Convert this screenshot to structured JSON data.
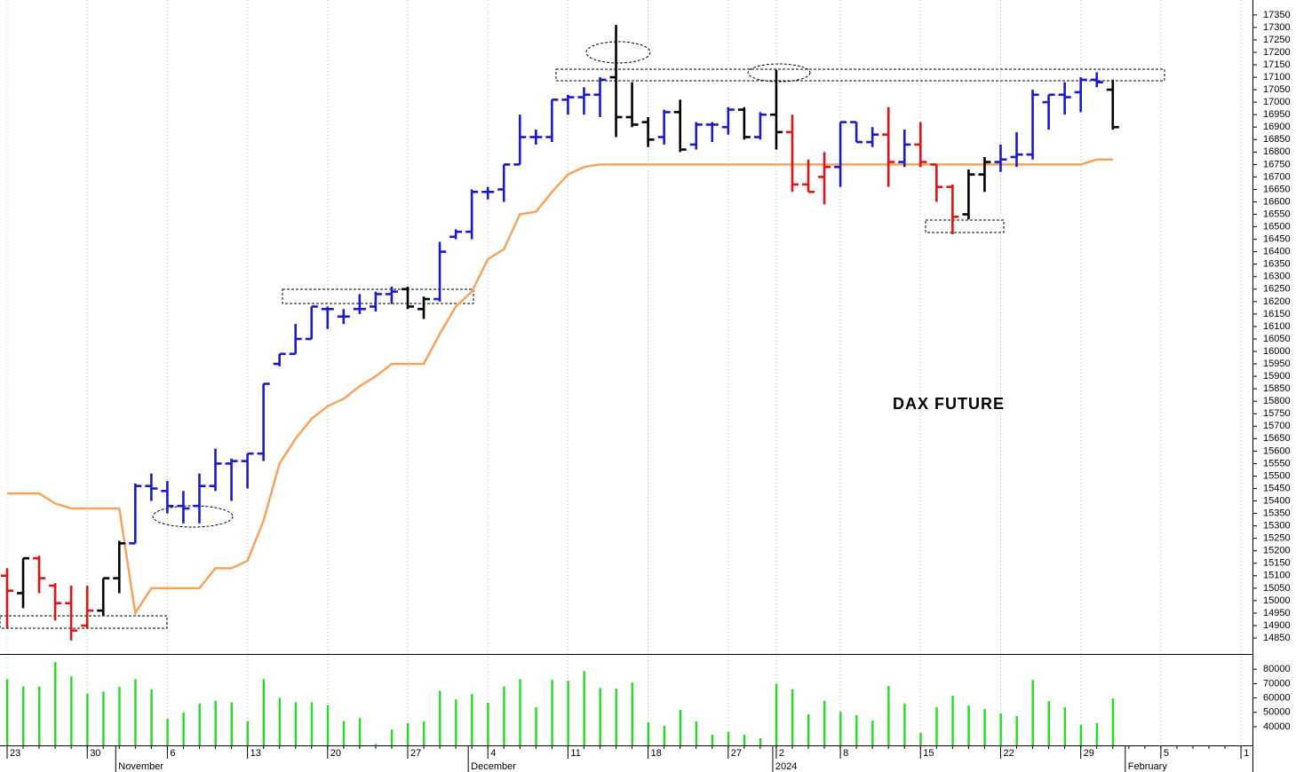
{
  "chart_data": {
    "type": "ohlc",
    "title": "DAX FUTURE",
    "categories": [
      "23",
      null,
      null,
      null,
      null,
      "30",
      null,
      null,
      null,
      null,
      "6",
      null,
      null,
      null,
      null,
      "13",
      null,
      null,
      null,
      null,
      "20",
      null,
      null,
      null,
      null,
      "27",
      null,
      null,
      null,
      null,
      "4",
      null,
      null,
      null,
      null,
      "11",
      null,
      null,
      null,
      null,
      "18",
      null,
      null,
      null,
      null,
      "27",
      null,
      null,
      "2",
      null,
      null,
      null,
      "8",
      null,
      null,
      null,
      null,
      "15",
      null,
      null,
      null,
      null,
      "22",
      null,
      null,
      null,
      null,
      "29",
      null,
      null,
      null,
      null,
      "5",
      null,
      null,
      null,
      null,
      "1"
    ],
    "months": [
      null,
      null,
      null,
      null,
      null,
      null,
      null,
      "November",
      null,
      null,
      null,
      null,
      null,
      null,
      null,
      null,
      null,
      null,
      null,
      null,
      null,
      null,
      null,
      null,
      null,
      null,
      null,
      null,
      null,
      "December",
      null,
      null,
      null,
      null,
      null,
      null,
      null,
      null,
      null,
      null,
      null,
      null,
      null,
      null,
      null,
      null,
      null,
      null,
      "2024",
      null,
      null,
      null,
      null,
      null,
      null,
      null,
      null,
      null,
      null,
      null,
      null,
      null,
      null,
      null,
      null,
      null,
      null,
      null,
      null,
      null,
      "February",
      null,
      null,
      null,
      null,
      null,
      null,
      null
    ],
    "open": [
      15100,
      15030,
      15170,
      15060,
      14990,
      14900,
      14960,
      15090,
      15230,
      15460,
      15440,
      15380,
      15380,
      15460,
      15550,
      15560,
      15590,
      15950,
      15990,
      16050,
      16170,
      16140,
      16170,
      16180,
      16230,
      16250,
      16170,
      16210,
      16460,
      16480,
      16640,
      16650,
      16750,
      16860,
      16860,
      17010,
      17020,
      17030,
      17100,
      16940,
      16920,
      16860,
      16960,
      16830,
      16910,
      16900,
      16970,
      16860,
      16950,
      16880,
      16670,
      16700,
      16740,
      16920,
      16840,
      16870,
      16760,
      16830,
      16750,
      16660,
      16550,
      16710,
      16760,
      16780,
      16790,
      17000,
      17030,
      17040,
      17090,
      17050,
      null,
      null,
      null,
      null,
      null,
      null,
      null,
      null
    ],
    "high": [
      15130,
      15170,
      15180,
      15070,
      15060,
      15060,
      15090,
      15240,
      15470,
      15510,
      15480,
      15440,
      15510,
      15610,
      15570,
      15590,
      15870,
      15990,
      16110,
      16180,
      16180,
      16170,
      16230,
      16240,
      16260,
      16260,
      16220,
      16440,
      16490,
      16650,
      16660,
      16750,
      16950,
      16890,
      17010,
      17030,
      17060,
      17100,
      17310,
      17080,
      16940,
      16970,
      17010,
      16920,
      16920,
      16980,
      16980,
      16960,
      17130,
      16950,
      16770,
      16800,
      16920,
      16920,
      16900,
      16980,
      16890,
      16920,
      16750,
      16670,
      16730,
      16780,
      16830,
      16880,
      17050,
      17030,
      17080,
      17100,
      17120,
      17090,
      null,
      null,
      null,
      null,
      null,
      null,
      null,
      null
    ],
    "low": [
      14890,
      14970,
      15030,
      14920,
      14840,
      14890,
      14940,
      15030,
      15230,
      15400,
      15350,
      15310,
      15310,
      15440,
      15400,
      15450,
      15560,
      15940,
      15990,
      16050,
      16090,
      16110,
      16150,
      16160,
      16190,
      16170,
      16130,
      16200,
      16450,
      16450,
      16610,
      16600,
      16750,
      16830,
      16840,
      16950,
      16950,
      16940,
      16860,
      16900,
      16820,
      16830,
      16800,
      16810,
      16840,
      16870,
      16850,
      16850,
      16810,
      16640,
      16640,
      16590,
      16660,
      16840,
      16820,
      16660,
      16740,
      16740,
      16600,
      16470,
      16530,
      16640,
      16720,
      16740,
      16770,
      16890,
      16950,
      16960,
      17060,
      16890,
      null,
      null,
      null,
      null,
      null,
      null,
      null,
      null
    ],
    "close": [
      15040,
      15170,
      15090,
      14990,
      14880,
      14960,
      15090,
      15230,
      15460,
      15450,
      15380,
      15370,
      15460,
      15550,
      15560,
      15590,
      15870,
      15990,
      16050,
      16180,
      16170,
      16140,
      16170,
      16230,
      16240,
      16180,
      16210,
      16400,
      16480,
      16640,
      16640,
      16750,
      16860,
      16860,
      17010,
      17020,
      17030,
      17090,
      16940,
      16910,
      16850,
      16960,
      16810,
      16910,
      16910,
      16970,
      16860,
      16950,
      16880,
      16670,
      16640,
      16740,
      16920,
      16840,
      16870,
      16760,
      16830,
      16760,
      16660,
      16540,
      16710,
      16760,
      16770,
      16790,
      17030,
      17030,
      17020,
      17090,
      17080,
      16900,
      null,
      null,
      null,
      null,
      null,
      null,
      null,
      null
    ],
    "bar_colors": [
      "#e01414",
      "#000000",
      "#e01414",
      "#e01414",
      "#e01414",
      "#e01414",
      "#000000",
      "#000000",
      "#1a1ac8",
      "#1a1ac8",
      "#1a1ac8",
      "#1a1ac8",
      "#1a1ac8",
      "#1a1ac8",
      "#1a1ac8",
      "#1a1ac8",
      "#1a1ac8",
      "#1a1ac8",
      "#1a1ac8",
      "#1a1ac8",
      "#1a1ac8",
      "#1a1ac8",
      "#1a1ac8",
      "#1a1ac8",
      "#1a1ac8",
      "#000000",
      "#000000",
      "#1a1ac8",
      "#1a1ac8",
      "#1a1ac8",
      "#1a1ac8",
      "#1a1ac8",
      "#1a1ac8",
      "#1a1ac8",
      "#1a1ac8",
      "#1a1ac8",
      "#1a1ac8",
      "#1a1ac8",
      "#000000",
      "#000000",
      "#000000",
      "#1a1ac8",
      "#000000",
      "#1a1ac8",
      "#1a1ac8",
      "#1a1ac8",
      "#000000",
      "#1a1ac8",
      "#000000",
      "#e01414",
      "#e01414",
      "#e01414",
      "#1a1ac8",
      "#1a1ac8",
      "#1a1ac8",
      "#e01414",
      "#1a1ac8",
      "#e01414",
      "#e01414",
      "#e01414",
      "#000000",
      "#000000",
      "#1a1ac8",
      "#1a1ac8",
      "#1a1ac8",
      "#1a1ac8",
      "#1a1ac8",
      "#1a1ac8",
      "#1a1ac8",
      "#000000",
      null,
      null,
      null,
      null,
      null,
      null,
      null,
      null
    ],
    "ylim": [
      14786,
      17410
    ],
    "yticks": [
      14850,
      14900,
      14950,
      15000,
      15050,
      15100,
      15150,
      15200,
      15250,
      15300,
      15350,
      15400,
      15450,
      15500,
      15550,
      15600,
      15650,
      15700,
      15750,
      15800,
      15850,
      15900,
      15950,
      16000,
      16050,
      16100,
      16150,
      16200,
      16250,
      16300,
      16350,
      16400,
      16450,
      16500,
      16550,
      16600,
      16650,
      16700,
      16750,
      16800,
      16850,
      16900,
      16950,
      17000,
      17050,
      17100,
      17150,
      17200,
      17250,
      17300,
      17350
    ],
    "moving_average": {
      "color": "#f5a35e",
      "values": [
        15430,
        15430,
        15430,
        15390,
        15370,
        15370,
        15370,
        15370,
        14950,
        15050,
        15050,
        15050,
        15050,
        15130,
        15130,
        15160,
        15320,
        15550,
        15650,
        15730,
        15780,
        15810,
        15860,
        15900,
        15950,
        15950,
        15950,
        16070,
        16180,
        16240,
        16370,
        16410,
        16550,
        16560,
        16640,
        16710,
        16740,
        16750,
        16750,
        16750,
        16750,
        16750,
        16750,
        16750,
        16750,
        16750,
        16750,
        16750,
        16750,
        16750,
        16750,
        16750,
        16750,
        16750,
        16750,
        16750,
        16750,
        16750,
        16750,
        16750,
        16750,
        16750,
        16750,
        16750,
        16750,
        16750,
        16750,
        16750,
        16770,
        16770,
        null,
        null,
        null,
        null,
        null,
        null,
        null,
        null
      ]
    },
    "volume": {
      "color": "#22dd22",
      "values": [
        73000,
        68000,
        68000,
        85000,
        75000,
        63000,
        64500,
        67700,
        73000,
        66000,
        45500,
        50000,
        56000,
        58000,
        57000,
        43700,
        73000,
        60000,
        57000,
        57000,
        55000,
        44000,
        46000,
        28000,
        38000,
        42500,
        43700,
        65000,
        59000,
        62700,
        56600,
        68000,
        73000,
        53500,
        72600,
        72000,
        78700,
        67000,
        66500,
        70700,
        43000,
        40600,
        51700,
        43700,
        34500,
        36300,
        34500,
        32000,
        70000,
        66000,
        48600,
        58000,
        50500,
        48000,
        44300,
        68300,
        56000,
        35700,
        53500,
        61500,
        54800,
        52300,
        49200,
        47400,
        72600,
        57800,
        53500,
        41200,
        42500,
        59700,
        null,
        null,
        null,
        null,
        null,
        null,
        null,
        null
      ],
      "ylim": [
        27000,
        90000
      ],
      "yticks": [
        40000,
        50000,
        60000,
        70000,
        80000
      ]
    }
  }
}
